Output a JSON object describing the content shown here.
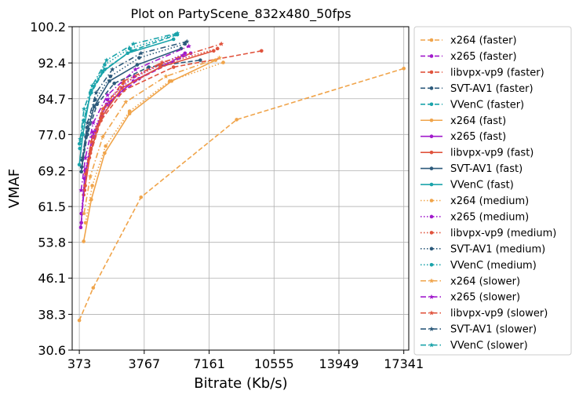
{
  "chart_data": {
    "type": "line",
    "title": "Plot on PartyScene_832x480_50fps",
    "xlabel": "Bitrate (Kb/s)",
    "ylabel": "VMAF",
    "xlim": [
      0,
      17600
    ],
    "ylim": [
      30.6,
      100.2
    ],
    "xticks": [
      373,
      3767,
      7161,
      10555,
      13949,
      17341
    ],
    "xtick_labels": [
      "373",
      "3767",
      "7161",
      "10555",
      "13949",
      "17341"
    ],
    "yticks": [
      30.6,
      38.3,
      46.1,
      53.8,
      61.5,
      69.2,
      77.0,
      84.7,
      92.4,
      100.2
    ],
    "ytick_labels": [
      "30.6",
      "38.3",
      "46.1",
      "53.8",
      "61.5",
      "69.2",
      "77.0",
      "84.7",
      "92.4",
      "100.2"
    ],
    "grid": true,
    "legend_position": "outside-right",
    "series": [
      {
        "name": "x264 (faster)",
        "color": "#f0a44a",
        "dash": "dashed",
        "marker": "circle",
        "x": [
          373,
          1100,
          3600,
          8600,
          17341
        ],
        "y": [
          37.0,
          44.0,
          63.5,
          80.2,
          91.2
        ]
      },
      {
        "name": "x265 (faster)",
        "color": "#a11acc",
        "dash": "dashed",
        "marker": "circle",
        "x": [
          480,
          700,
          1200,
          2000,
          3500,
          6200
        ],
        "y": [
          58.0,
          69.0,
          77.5,
          84.0,
          89.0,
          94.5
        ]
      },
      {
        "name": "libvpx-vp9 (faster)",
        "color": "#e0533d",
        "dash": "dashed",
        "marker": "circle",
        "x": [
          600,
          900,
          1500,
          2700,
          5300,
          9900
        ],
        "y": [
          64.0,
          72.0,
          80.0,
          86.5,
          91.5,
          95.0
        ]
      },
      {
        "name": "SVT-AV1 (faster)",
        "color": "#2d5a7b",
        "dash": "dashed",
        "marker": "circle",
        "x": [
          500,
          800,
          1300,
          2200,
          4000,
          6700
        ],
        "y": [
          70.0,
          77.0,
          83.5,
          88.0,
          91.5,
          93.0
        ]
      },
      {
        "name": "VVenC (faster)",
        "color": "#1aa3aa",
        "dash": "dashed",
        "marker": "circle",
        "x": [
          380,
          600,
          1000,
          1700,
          3100,
          5500
        ],
        "y": [
          75.0,
          80.0,
          86.0,
          91.0,
          95.0,
          98.5
        ]
      },
      {
        "name": "x264 (fast)",
        "color": "#f0a44a",
        "dash": "solid",
        "marker": "circle",
        "x": [
          600,
          1000,
          1700,
          3000,
          5200,
          7500
        ],
        "y": [
          54.0,
          63.0,
          73.0,
          81.5,
          88.5,
          93.0
        ]
      },
      {
        "name": "x265 (fast)",
        "color": "#a11acc",
        "dash": "solid",
        "marker": "circle",
        "x": [
          450,
          650,
          1050,
          1800,
          3200,
          5800
        ],
        "y": [
          57.0,
          67.5,
          76.5,
          83.5,
          88.5,
          94.0
        ]
      },
      {
        "name": "libvpx-vp9 (fast)",
        "color": "#e0533d",
        "dash": "solid",
        "marker": "circle",
        "x": [
          650,
          950,
          1500,
          2600,
          4600,
          7400
        ],
        "y": [
          65.0,
          73.0,
          80.5,
          87.0,
          91.5,
          95.0
        ]
      },
      {
        "name": "SVT-AV1 (fast)",
        "color": "#2d5a7b",
        "dash": "solid",
        "marker": "circle",
        "x": [
          480,
          720,
          1150,
          1950,
          3400,
          5700
        ],
        "y": [
          69.0,
          76.5,
          83.0,
          88.5,
          92.0,
          95.5
        ]
      },
      {
        "name": "VVenC (fast)",
        "color": "#1aa3aa",
        "dash": "solid",
        "marker": "circle",
        "x": [
          373,
          560,
          950,
          1600,
          2900,
          5300
        ],
        "y": [
          70.5,
          77.0,
          86.0,
          90.5,
          94.5,
          97.5
        ]
      },
      {
        "name": "x264 (medium)",
        "color": "#f0a44a",
        "dash": "dotted",
        "marker": "circle",
        "x": [
          700,
          1050,
          1750,
          3000,
          5100,
          7900
        ],
        "y": [
          58.0,
          66.0,
          74.5,
          82.0,
          88.5,
          92.5
        ]
      },
      {
        "name": "x265 (medium)",
        "color": "#a11acc",
        "dash": "dotted",
        "marker": "circle",
        "x": [
          480,
          700,
          1100,
          1850,
          3250,
          5900
        ],
        "y": [
          60.0,
          69.5,
          77.5,
          84.5,
          89.5,
          94.5
        ]
      },
      {
        "name": "libvpx-vp9 (medium)",
        "color": "#e0533d",
        "dash": "dotted",
        "marker": "circle",
        "x": [
          680,
          980,
          1550,
          2650,
          4600,
          7600
        ],
        "y": [
          66.0,
          74.0,
          81.5,
          88.0,
          92.0,
          95.5
        ]
      },
      {
        "name": "SVT-AV1 (medium)",
        "color": "#2d5a7b",
        "dash": "dotted",
        "marker": "circle",
        "x": [
          520,
          770,
          1200,
          2000,
          3500,
          5900
        ],
        "y": [
          71.5,
          78.5,
          84.5,
          89.5,
          93.5,
          96.5
        ]
      },
      {
        "name": "VVenC (medium)",
        "color": "#1aa3aa",
        "dash": "dotted",
        "marker": "circle",
        "x": [
          400,
          600,
          1000,
          1700,
          3000,
          5400
        ],
        "y": [
          74.0,
          80.0,
          86.5,
          92.0,
          95.5,
          98.5
        ]
      },
      {
        "name": "x264 (slower)",
        "color": "#f0a44a",
        "dash": "dashdot",
        "marker": "star",
        "x": [
          620,
          950,
          1600,
          2800,
          4900,
          7700
        ],
        "y": [
          60.0,
          68.0,
          76.5,
          84.0,
          89.5,
          93.5
        ]
      },
      {
        "name": "x265 (slower)",
        "color": "#a11acc",
        "dash": "dashdot",
        "marker": "star",
        "x": [
          470,
          690,
          1100,
          1850,
          3300,
          6100
        ],
        "y": [
          65.0,
          72.0,
          79.5,
          85.5,
          91.0,
          96.0
        ]
      },
      {
        "name": "libvpx-vp9 (slower)",
        "color": "#e0533d",
        "dash": "dashdot",
        "marker": "star",
        "x": [
          700,
          1000,
          1600,
          2700,
          4700,
          7800
        ],
        "y": [
          68.5,
          75.5,
          82.5,
          88.5,
          92.5,
          96.5
        ]
      },
      {
        "name": "SVT-AV1 (slower)",
        "color": "#2d5a7b",
        "dash": "dashdot",
        "marker": "star",
        "x": [
          540,
          800,
          1250,
          2100,
          3600,
          6000
        ],
        "y": [
          72.0,
          79.5,
          86.0,
          91.0,
          94.5,
          97.0
        ]
      },
      {
        "name": "VVenC (slower)",
        "color": "#1aa3aa",
        "dash": "dashdot",
        "marker": "star",
        "x": [
          420,
          620,
          1050,
          1800,
          3200,
          5500
        ],
        "y": [
          76.0,
          82.5,
          87.5,
          93.0,
          96.5,
          98.8
        ]
      }
    ]
  }
}
